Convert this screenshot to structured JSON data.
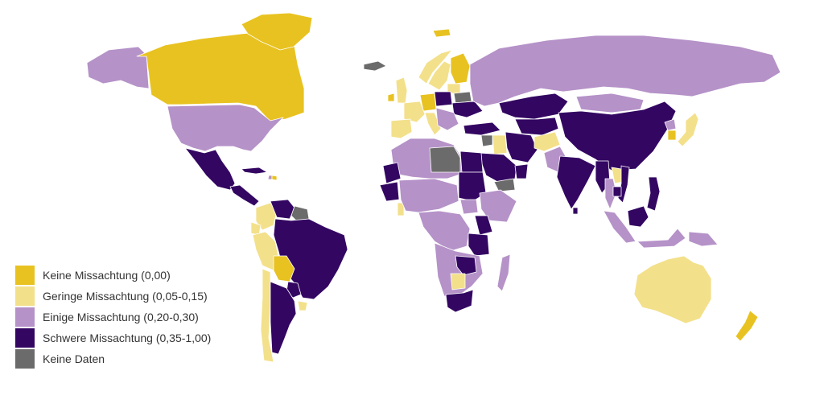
{
  "legend": {
    "items": [
      {
        "key": "none",
        "label": "Keine Missachtung (0,00)",
        "color": "#e8c220"
      },
      {
        "key": "low",
        "label": "Geringe Missachtung (0,05-0,15)",
        "color": "#f3e08a"
      },
      {
        "key": "some",
        "label": "Einige Missachtung (0,20-0,30)",
        "color": "#b592c8"
      },
      {
        "key": "severe",
        "label": "Schwere Missachtung (0,35-1,00)",
        "color": "#330662"
      },
      {
        "key": "nodata",
        "label": "Keine Daten",
        "color": "#6b6b6b"
      }
    ]
  },
  "regions": [
    {
      "name": "canada",
      "category": "none"
    },
    {
      "name": "greenland",
      "category": "none"
    },
    {
      "name": "alaska",
      "category": "some"
    },
    {
      "name": "usa",
      "category": "some"
    },
    {
      "name": "mexico",
      "category": "severe"
    },
    {
      "name": "central-america",
      "category": "severe"
    },
    {
      "name": "cuba",
      "category": "severe"
    },
    {
      "name": "haiti",
      "category": "some"
    },
    {
      "name": "dominican-republic",
      "category": "none"
    },
    {
      "name": "colombia",
      "category": "low"
    },
    {
      "name": "venezuela",
      "category": "severe"
    },
    {
      "name": "guyana",
      "category": "nodata"
    },
    {
      "name": "ecuador",
      "category": "low"
    },
    {
      "name": "peru",
      "category": "low"
    },
    {
      "name": "brazil",
      "category": "severe"
    },
    {
      "name": "bolivia",
      "category": "none"
    },
    {
      "name": "paraguay",
      "category": "severe"
    },
    {
      "name": "chile",
      "category": "low"
    },
    {
      "name": "argentina",
      "category": "severe"
    },
    {
      "name": "uruguay",
      "category": "low"
    },
    {
      "name": "svalbard",
      "category": "none"
    },
    {
      "name": "iceland",
      "category": "nodata"
    },
    {
      "name": "ireland",
      "category": "none"
    },
    {
      "name": "uk",
      "category": "low"
    },
    {
      "name": "norway",
      "category": "low"
    },
    {
      "name": "sweden",
      "category": "low"
    },
    {
      "name": "finland",
      "category": "none"
    },
    {
      "name": "baltics",
      "category": "low"
    },
    {
      "name": "belarus",
      "category": "nodata"
    },
    {
      "name": "poland",
      "category": "severe"
    },
    {
      "name": "ukraine",
      "category": "severe"
    },
    {
      "name": "germany",
      "category": "none"
    },
    {
      "name": "france",
      "category": "low"
    },
    {
      "name": "iberia",
      "category": "low"
    },
    {
      "name": "italy",
      "category": "low"
    },
    {
      "name": "balkans",
      "category": "some"
    },
    {
      "name": "turkey",
      "category": "severe"
    },
    {
      "name": "russia",
      "category": "some"
    },
    {
      "name": "kazakhstan",
      "category": "severe"
    },
    {
      "name": "central-asia",
      "category": "severe"
    },
    {
      "name": "mongolia",
      "category": "some"
    },
    {
      "name": "china",
      "category": "severe"
    },
    {
      "name": "north-korea",
      "category": "some"
    },
    {
      "name": "south-korea",
      "category": "none"
    },
    {
      "name": "japan",
      "category": "low"
    },
    {
      "name": "iran",
      "category": "severe"
    },
    {
      "name": "iraq",
      "category": "low"
    },
    {
      "name": "syria",
      "category": "nodata"
    },
    {
      "name": "saudi-arabia",
      "category": "severe"
    },
    {
      "name": "yemen",
      "category": "nodata"
    },
    {
      "name": "oman",
      "category": "severe"
    },
    {
      "name": "afghanistan",
      "category": "low"
    },
    {
      "name": "pakistan",
      "category": "some"
    },
    {
      "name": "india",
      "category": "severe"
    },
    {
      "name": "sri-lanka",
      "category": "severe"
    },
    {
      "name": "myanmar",
      "category": "severe"
    },
    {
      "name": "thailand",
      "category": "some"
    },
    {
      "name": "laos",
      "category": "low"
    },
    {
      "name": "vietnam",
      "category": "severe"
    },
    {
      "name": "cambodia",
      "category": "severe"
    },
    {
      "name": "philippines",
      "category": "severe"
    },
    {
      "name": "malaysia-sumatra",
      "category": "some"
    },
    {
      "name": "borneo",
      "category": "severe"
    },
    {
      "name": "indonesia-east",
      "category": "some"
    },
    {
      "name": "papua-new-guinea",
      "category": "some"
    },
    {
      "name": "australia",
      "category": "low"
    },
    {
      "name": "new-zealand",
      "category": "none"
    },
    {
      "name": "north-africa",
      "category": "some"
    },
    {
      "name": "libya",
      "category": "nodata"
    },
    {
      "name": "egypt",
      "category": "severe"
    },
    {
      "name": "mauritania",
      "category": "severe"
    },
    {
      "name": "senegal-west",
      "category": "severe"
    },
    {
      "name": "sudan",
      "category": "severe"
    },
    {
      "name": "south-sudan",
      "category": "some"
    },
    {
      "name": "ethiopia-somalia",
      "category": "some"
    },
    {
      "name": "ghana",
      "category": "low"
    },
    {
      "name": "nigeria-region",
      "category": "some"
    },
    {
      "name": "central-africa",
      "category": "some"
    },
    {
      "name": "kenya",
      "category": "severe"
    },
    {
      "name": "tanzania-region",
      "category": "severe"
    },
    {
      "name": "southern-africa",
      "category": "some"
    },
    {
      "name": "zambia-malawi",
      "category": "severe"
    },
    {
      "name": "botswana",
      "category": "low"
    },
    {
      "name": "south-africa",
      "category": "severe"
    },
    {
      "name": "madagascar",
      "category": "some"
    }
  ]
}
